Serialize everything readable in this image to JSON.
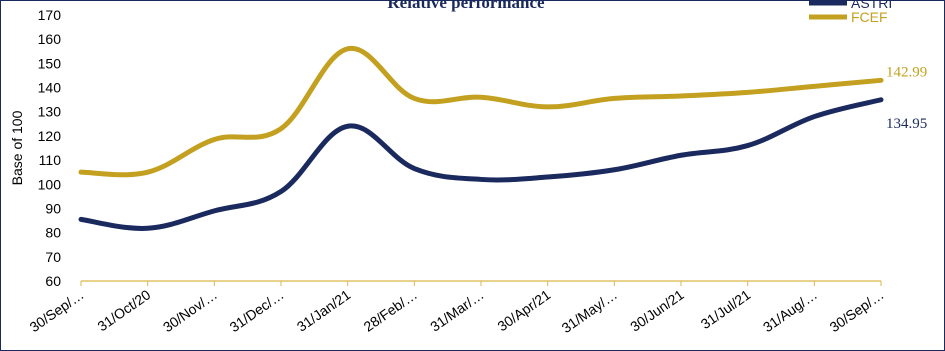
{
  "chart_data": {
    "type": "line",
    "title": "Relative performance",
    "ylabel": "Base of 100",
    "xlabel": "",
    "ylim": [
      60,
      170
    ],
    "yticks": [
      60,
      70,
      80,
      90,
      100,
      110,
      120,
      130,
      140,
      150,
      160,
      170
    ],
    "categories": [
      "30/Sep/…",
      "31/Oct/20",
      "30/Nov/…",
      "31/Dec/…",
      "31/Jan/21",
      "28/Feb/…",
      "31/Mar/…",
      "30/Apr/21",
      "31/May/…",
      "30/Jun/21",
      "31/Jul/21",
      "31/Aug/…",
      "30/Sep/…"
    ],
    "series": [
      {
        "name": "ASTRI",
        "color": "#1b2a5e",
        "values": [
          85.5,
          81.8,
          89.0,
          97.0,
          124.0,
          106.5,
          102.0,
          103.0,
          106.0,
          112.0,
          116.0,
          128.0,
          134.95
        ],
        "end_label": "134.95"
      },
      {
        "name": "FCEF",
        "color": "#c4a020",
        "values": [
          105.0,
          105.0,
          118.5,
          123.0,
          156.0,
          135.5,
          136.0,
          132.0,
          135.5,
          136.5,
          138.0,
          140.5,
          142.99
        ],
        "end_label": "142.99"
      }
    ],
    "legend_position": "top-right",
    "grid": false
  }
}
